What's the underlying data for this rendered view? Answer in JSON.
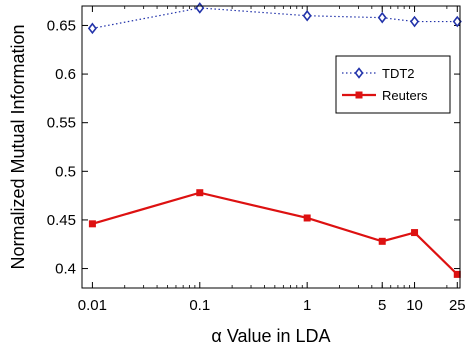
{
  "chart_data": {
    "type": "line",
    "x": [
      "0.01",
      "0.1",
      "1",
      "5",
      "10",
      "25"
    ],
    "x_values": [
      0.01,
      0.1,
      1,
      5,
      10,
      25
    ],
    "x_scale": "log",
    "xlabel_greek": "α",
    "xlabel": "Value in LDA",
    "ylabel": "Normalized Mutual Information",
    "ylim": [
      0.38,
      0.67
    ],
    "yticks": [
      "0.4",
      "0.45",
      "0.5",
      "0.55",
      "0.6",
      "0.65"
    ],
    "ytick_values": [
      0.4,
      0.45,
      0.5,
      0.55,
      0.6,
      0.65
    ],
    "grid": false,
    "legend_position": "top-right",
    "series": [
      {
        "name": "TDT2",
        "values": [
          0.647,
          0.668,
          0.66,
          0.658,
          0.654,
          0.654
        ],
        "color": "#2233aa",
        "line_style": "dotted",
        "marker": "diamond"
      },
      {
        "name": "Reuters",
        "values": [
          0.446,
          0.478,
          0.452,
          0.428,
          0.437,
          0.394
        ],
        "color": "#dd1111",
        "line_style": "solid",
        "marker": "square"
      }
    ]
  }
}
